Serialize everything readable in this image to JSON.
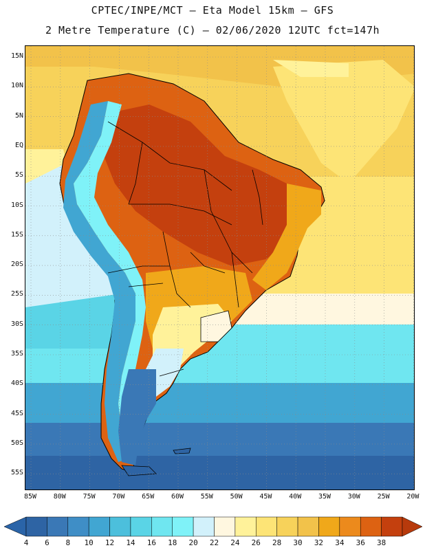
{
  "title_line1": "CPTEC/INPE/MCT –  Eta Model 15km – GFS",
  "title_line2": "2 Metre Temperature (C) – 02/06/2020 12UTC fct=147h",
  "lat_labels": [
    "15N",
    "10N",
    "5N",
    "EQ",
    "5S",
    "10S",
    "15S",
    "20S",
    "25S",
    "30S",
    "35S",
    "40S",
    "45S",
    "50S",
    "55S"
  ],
  "lon_labels": [
    "85W",
    "80W",
    "75W",
    "70W",
    "65W",
    "60W",
    "55W",
    "50W",
    "45W",
    "40W",
    "35W",
    "30W",
    "25W",
    "20W"
  ],
  "colorbar": {
    "labels": [
      "4",
      "6",
      "8",
      "10",
      "12",
      "14",
      "16",
      "18",
      "20",
      "22",
      "24",
      "26",
      "28",
      "30",
      "32",
      "34",
      "36",
      "38"
    ],
    "colors": [
      "#2e64a4",
      "#3a78b6",
      "#3f8ec6",
      "#41a6d2",
      "#4cbfdc",
      "#5ad4e6",
      "#6fe6f0",
      "#7ff2f8",
      "#d2f1fb",
      "#fff7e0",
      "#fff29a",
      "#fde476",
      "#f7d25a",
      "#f2c24a",
      "#f0a81a",
      "#ec8a1c",
      "#dd6212",
      "#c4400e"
    ],
    "under_color": "#2a64a8",
    "over_color": "#b73a0c"
  }
}
